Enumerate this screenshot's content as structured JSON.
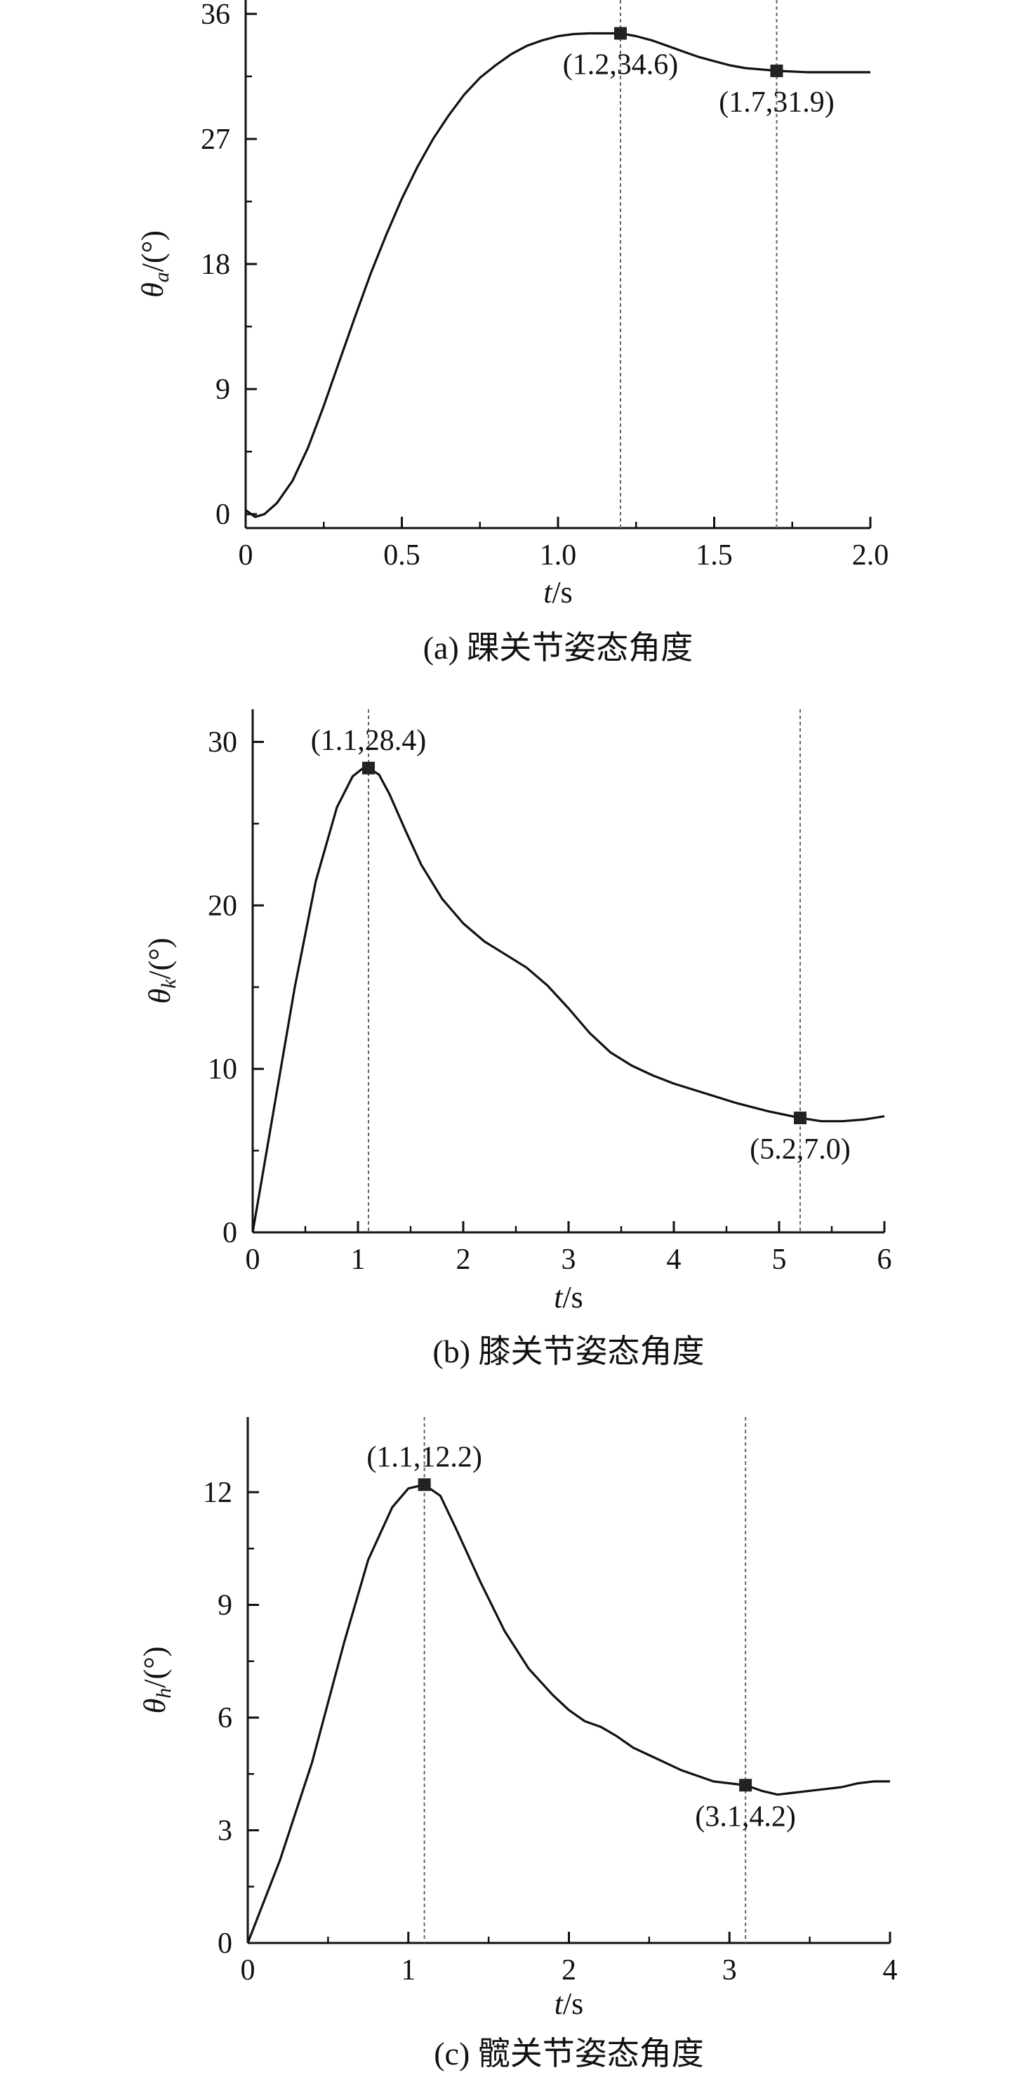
{
  "chart_data": [
    {
      "type": "line",
      "caption": "(a) 踝关节姿态角度",
      "xlabel": {
        "var": "t",
        "unit": "/s"
      },
      "ylabel": {
        "sym": "θ",
        "sub": "a",
        "unit": "/(°)"
      },
      "xlim": [
        0,
        2.0
      ],
      "ylim": [
        -1,
        37
      ],
      "xticks": [
        0,
        0.5,
        1.0,
        1.5,
        2.0
      ],
      "xtick_labels": [
        "0",
        "0.5",
        "1.0",
        "1.5",
        "2.0"
      ],
      "yticks": [
        0,
        9,
        18,
        27,
        36
      ],
      "ytick_labels": [
        "0",
        "9",
        "18",
        "27",
        "36"
      ],
      "series": [
        {
          "x": [
            0,
            0.03,
            0.06,
            0.1,
            0.15,
            0.2,
            0.25,
            0.3,
            0.35,
            0.4,
            0.45,
            0.5,
            0.55,
            0.6,
            0.65,
            0.7,
            0.75,
            0.8,
            0.85,
            0.9,
            0.95,
            1.0,
            1.05,
            1.1,
            1.15,
            1.2,
            1.25,
            1.3,
            1.35,
            1.4,
            1.45,
            1.5,
            1.55,
            1.6,
            1.65,
            1.7,
            1.75,
            1.8,
            1.85,
            1.9,
            1.95,
            2.0
          ],
          "y": [
            0.3,
            -0.2,
            0,
            0.8,
            2.4,
            4.8,
            7.8,
            11.0,
            14.2,
            17.3,
            20.1,
            22.7,
            25.0,
            27.0,
            28.7,
            30.2,
            31.4,
            32.3,
            33.1,
            33.7,
            34.1,
            34.4,
            34.55,
            34.6,
            34.6,
            34.6,
            34.4,
            34.1,
            33.7,
            33.3,
            32.9,
            32.6,
            32.3,
            32.1,
            32.0,
            31.9,
            31.85,
            31.8,
            31.8,
            31.8,
            31.8,
            31.8
          ]
        }
      ],
      "markers": [
        {
          "x": 1.2,
          "y": 34.6,
          "label": "(1.2,34.6)",
          "anchor": "below"
        },
        {
          "x": 1.7,
          "y": 31.9,
          "label": "(1.7,31.9)",
          "anchor": "below"
        }
      ]
    },
    {
      "type": "line",
      "caption": "(b) 膝关节姿态角度",
      "xlabel": {
        "var": "t",
        "unit": "/s"
      },
      "ylabel": {
        "sym": "θ",
        "sub": "k",
        "unit": "/(°)"
      },
      "xlim": [
        0,
        6
      ],
      "ylim": [
        0,
        32
      ],
      "xticks": [
        0,
        1,
        2,
        3,
        4,
        5,
        6
      ],
      "xtick_labels": [
        "0",
        "1",
        "2",
        "3",
        "4",
        "5",
        "6"
      ],
      "yticks": [
        0,
        10,
        20,
        30
      ],
      "ytick_labels": [
        "0",
        "10",
        "20",
        "30"
      ],
      "series": [
        {
          "x": [
            0,
            0.2,
            0.4,
            0.6,
            0.8,
            0.95,
            1.05,
            1.1,
            1.2,
            1.3,
            1.45,
            1.6,
            1.8,
            2.0,
            2.2,
            2.4,
            2.6,
            2.8,
            3.0,
            3.2,
            3.4,
            3.6,
            3.8,
            4.0,
            4.3,
            4.6,
            4.9,
            5.2,
            5.4,
            5.6,
            5.8,
            6.0
          ],
          "y": [
            0,
            7.5,
            15.0,
            21.5,
            26.0,
            27.9,
            28.4,
            28.4,
            28.0,
            26.8,
            24.6,
            22.5,
            20.4,
            18.9,
            17.8,
            17.0,
            16.2,
            15.1,
            13.7,
            12.2,
            11.0,
            10.2,
            9.6,
            9.1,
            8.5,
            7.9,
            7.4,
            7.0,
            6.8,
            6.8,
            6.9,
            7.1
          ]
        }
      ],
      "markers": [
        {
          "x": 1.1,
          "y": 28.4,
          "label": "(1.1,28.4)",
          "anchor": "above"
        },
        {
          "x": 5.2,
          "y": 7.0,
          "label": "(5.2,7.0)",
          "anchor": "below"
        }
      ]
    },
    {
      "type": "line",
      "caption": "(c) 髋关节姿态角度",
      "xlabel": {
        "var": "t",
        "unit": "/s"
      },
      "ylabel": {
        "sym": "θ",
        "sub": "h",
        "unit": "/(°)"
      },
      "xlim": [
        0,
        4
      ],
      "ylim": [
        0,
        14
      ],
      "xticks": [
        0,
        1,
        2,
        3,
        4
      ],
      "xtick_labels": [
        "0",
        "1",
        "2",
        "3",
        "4"
      ],
      "yticks": [
        0,
        3,
        6,
        9,
        12
      ],
      "ytick_labels": [
        "0",
        "3",
        "6",
        "9",
        "12"
      ],
      "series": [
        {
          "x": [
            0,
            0.2,
            0.4,
            0.6,
            0.75,
            0.9,
            1.0,
            1.1,
            1.2,
            1.3,
            1.45,
            1.6,
            1.75,
            1.9,
            2.0,
            2.1,
            2.2,
            2.3,
            2.4,
            2.5,
            2.6,
            2.7,
            2.8,
            2.9,
            3.0,
            3.1,
            3.2,
            3.3,
            3.4,
            3.5,
            3.6,
            3.7,
            3.8,
            3.9,
            4.0
          ],
          "y": [
            0,
            2.2,
            4.8,
            8.0,
            10.2,
            11.6,
            12.1,
            12.2,
            11.9,
            11.0,
            9.6,
            8.3,
            7.3,
            6.6,
            6.2,
            5.9,
            5.75,
            5.5,
            5.2,
            5.0,
            4.8,
            4.6,
            4.45,
            4.3,
            4.25,
            4.2,
            4.05,
            3.95,
            4.0,
            4.05,
            4.1,
            4.15,
            4.25,
            4.3,
            4.3
          ]
        }
      ],
      "markers": [
        {
          "x": 1.1,
          "y": 12.2,
          "label": "(1.1,12.2)",
          "anchor": "above"
        },
        {
          "x": 3.1,
          "y": 4.2,
          "label": "(3.1,4.2)",
          "anchor": "below"
        }
      ]
    }
  ]
}
